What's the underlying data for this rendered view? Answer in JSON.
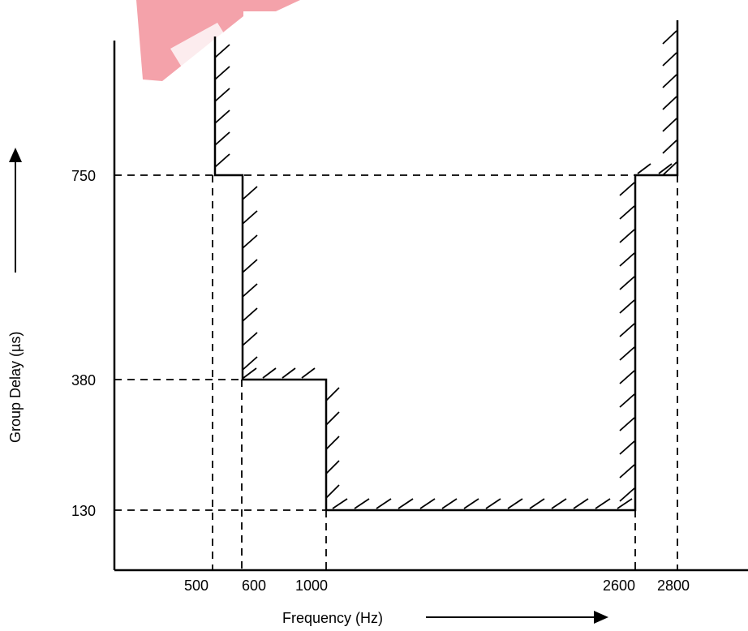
{
  "chart_data": {
    "type": "diagram",
    "title": "",
    "xlabel": "Frequency (Hz)",
    "ylabel": "Group Delay (µs)",
    "x_ticks": [
      "500",
      "600",
      "1000",
      "2600",
      "2800"
    ],
    "y_ticks": [
      "750",
      "380",
      "130"
    ],
    "mask_upper_left": [
      [
        500,
        750
      ],
      [
        600,
        750
      ],
      [
        600,
        380
      ],
      [
        1000,
        380
      ],
      [
        1000,
        130
      ]
    ],
    "mask_lower_right": [
      [
        1000,
        130
      ],
      [
        2600,
        130
      ],
      [
        2600,
        750
      ],
      [
        2800,
        750
      ]
    ]
  },
  "colors": {
    "line": "#000000",
    "watermark": "#e5192e"
  }
}
